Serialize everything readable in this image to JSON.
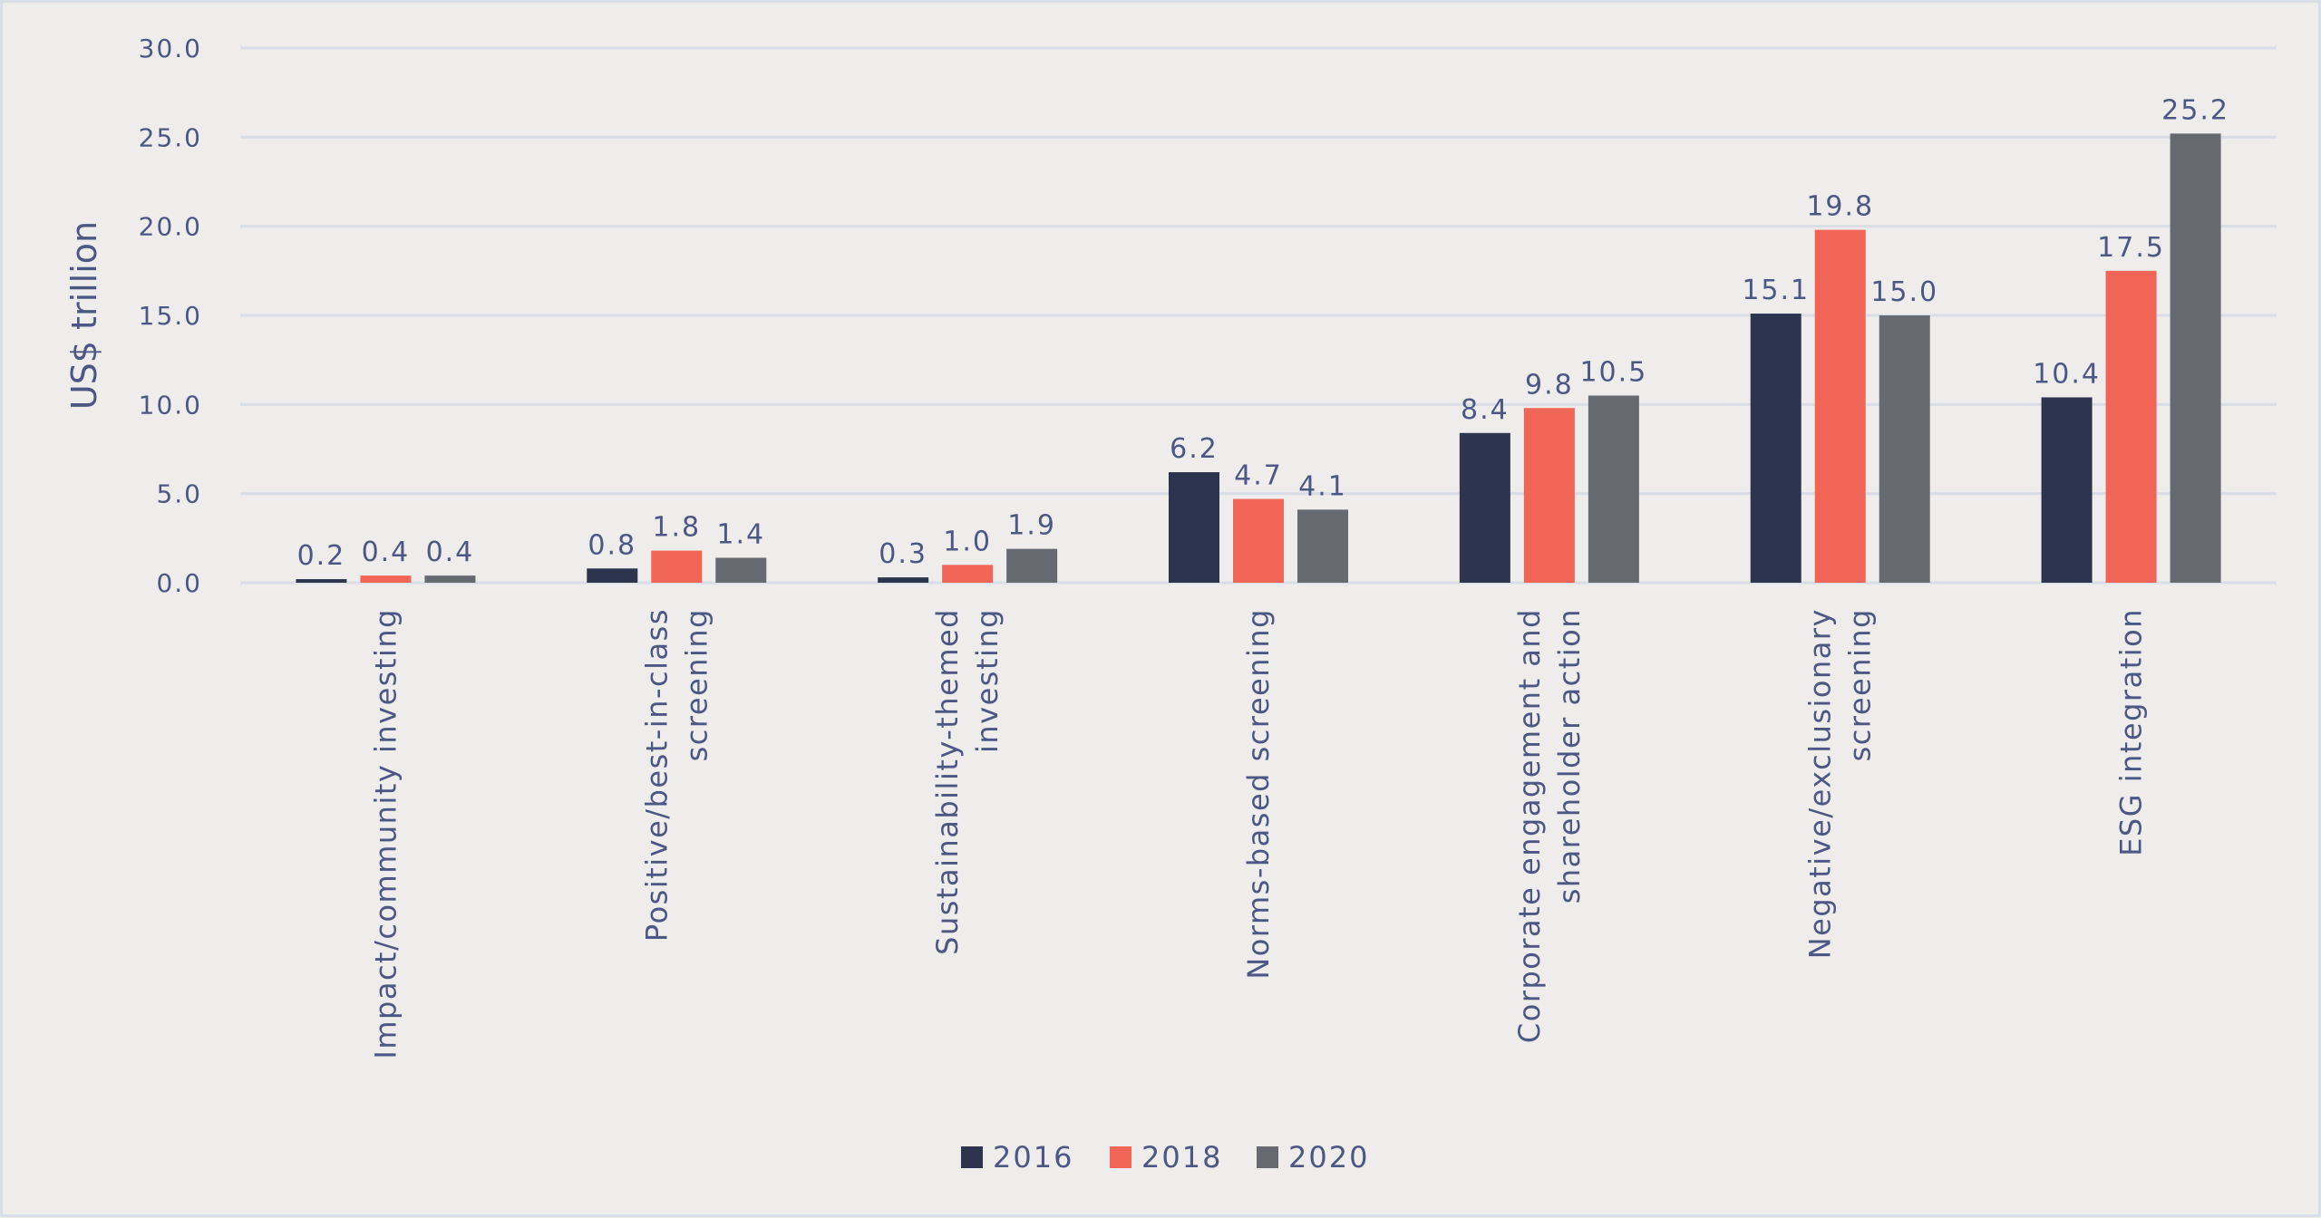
{
  "chart_data": {
    "type": "bar",
    "title": "",
    "xlabel": "",
    "ylabel": "US$ trillion",
    "ylim": [
      0,
      30
    ],
    "yticks": [
      "0.0",
      "5.0",
      "10.0",
      "15.0",
      "20.0",
      "25.0",
      "30.0"
    ],
    "grid": true,
    "legend_position": "bottom",
    "categories": [
      [
        "Impact/community investing"
      ],
      [
        "Positive/best-in-class",
        "screening"
      ],
      [
        "Sustainability-themed",
        "investing"
      ],
      [
        "Norms-based screening"
      ],
      [
        "Corporate engagement and",
        "shareholder action"
      ],
      [
        "Negative/exclusionary",
        "screening"
      ],
      [
        "ESG integration"
      ]
    ],
    "series": [
      {
        "name": "2016",
        "color": "#2c344e",
        "values": [
          0.2,
          0.8,
          0.3,
          6.2,
          8.4,
          15.1,
          10.4
        ],
        "labels": [
          "0.2",
          "0.8",
          "0.3",
          "6.2",
          "8.4",
          "15.1",
          "10.4"
        ]
      },
      {
        "name": "2018",
        "color": "#f06555",
        "values": [
          0.4,
          1.8,
          1.0,
          4.7,
          9.8,
          19.8,
          17.5
        ],
        "labels": [
          "0.4",
          "1.8",
          "1.0",
          "4.7",
          "9.8",
          "19.8",
          "17.5"
        ]
      },
      {
        "name": "2020",
        "color": "#66696f",
        "values": [
          0.4,
          1.4,
          1.9,
          4.1,
          10.5,
          15.0,
          25.2
        ],
        "labels": [
          "0.4",
          "1.4",
          "1.9",
          "4.1",
          "10.5",
          "15.0",
          "25.2"
        ]
      }
    ],
    "colors": {
      "axis_text": "#4c5784",
      "gridline": "#d9dde6",
      "background": "#efecec"
    }
  }
}
